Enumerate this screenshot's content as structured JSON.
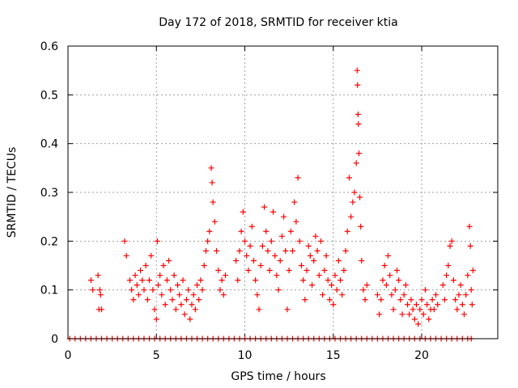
{
  "chart_data": {
    "type": "scatter",
    "title": "Day 172 of 2018, SRMTID for receiver ktia",
    "xlabel": "GPS time / hours",
    "ylabel": "SRMTID / TECUs",
    "xlim": [
      0,
      24.3
    ],
    "ylim": [
      0,
      0.6
    ],
    "xticks": [
      0,
      5,
      10,
      15,
      20
    ],
    "xtick_labels": [
      "0",
      "5",
      "10",
      "15",
      "20"
    ],
    "yticks": [
      0,
      0.1,
      0.2,
      0.3,
      0.4,
      0.5,
      0.6
    ],
    "ytick_labels": [
      "0",
      "0.1",
      "0.2",
      "0.3",
      "0.4",
      "0.5",
      "0.6"
    ],
    "grid": true,
    "marker": "+",
    "series": [
      {
        "name": "SRMTID",
        "color": "#ff0000",
        "points": [
          [
            1.3,
            0.12
          ],
          [
            1.4,
            0.1
          ],
          [
            1.7,
            0.13
          ],
          [
            1.75,
            0.06
          ],
          [
            1.8,
            0.1
          ],
          [
            1.85,
            0.09
          ],
          [
            1.9,
            0.06
          ],
          [
            3.2,
            0.2
          ],
          [
            3.3,
            0.17
          ],
          [
            3.5,
            0.12
          ],
          [
            3.6,
            0.1
          ],
          [
            3.7,
            0.08
          ],
          [
            3.8,
            0.13
          ],
          [
            3.9,
            0.11
          ],
          [
            4.0,
            0.09
          ],
          [
            4.1,
            0.14
          ],
          [
            4.2,
            0.12
          ],
          [
            4.3,
            0.1
          ],
          [
            4.4,
            0.15
          ],
          [
            4.5,
            0.08
          ],
          [
            4.6,
            0.12
          ],
          [
            4.7,
            0.17
          ],
          [
            4.8,
            0.1
          ],
          [
            4.9,
            0.06
          ],
          [
            5.0,
            0.04
          ],
          [
            5.05,
            0.2
          ],
          [
            5.1,
            0.11
          ],
          [
            5.2,
            0.13
          ],
          [
            5.3,
            0.09
          ],
          [
            5.4,
            0.15
          ],
          [
            5.5,
            0.07
          ],
          [
            5.6,
            0.12
          ],
          [
            5.7,
            0.16
          ],
          [
            5.8,
            0.1
          ],
          [
            5.9,
            0.08
          ],
          [
            6.0,
            0.13
          ],
          [
            6.1,
            0.06
          ],
          [
            6.2,
            0.11
          ],
          [
            6.3,
            0.09
          ],
          [
            6.4,
            0.07
          ],
          [
            6.5,
            0.12
          ],
          [
            6.6,
            0.05
          ],
          [
            6.7,
            0.08
          ],
          [
            6.8,
            0.1
          ],
          [
            6.9,
            0.04
          ],
          [
            7.0,
            0.07
          ],
          [
            7.1,
            0.09
          ],
          [
            7.2,
            0.06
          ],
          [
            7.3,
            0.11
          ],
          [
            7.4,
            0.08
          ],
          [
            7.5,
            0.12
          ],
          [
            7.6,
            0.1
          ],
          [
            7.7,
            0.15
          ],
          [
            7.8,
            0.18
          ],
          [
            7.9,
            0.2
          ],
          [
            8.0,
            0.22
          ],
          [
            8.1,
            0.35
          ],
          [
            8.15,
            0.32
          ],
          [
            8.2,
            0.28
          ],
          [
            8.3,
            0.24
          ],
          [
            8.4,
            0.18
          ],
          [
            8.5,
            0.14
          ],
          [
            8.6,
            0.1
          ],
          [
            8.7,
            0.12
          ],
          [
            8.8,
            0.09
          ],
          [
            8.9,
            0.13
          ],
          [
            9.5,
            0.16
          ],
          [
            9.6,
            0.12
          ],
          [
            9.7,
            0.18
          ],
          [
            9.8,
            0.22
          ],
          [
            9.9,
            0.26
          ],
          [
            10.0,
            0.2
          ],
          [
            10.1,
            0.17
          ],
          [
            10.2,
            0.14
          ],
          [
            10.3,
            0.19
          ],
          [
            10.4,
            0.23
          ],
          [
            10.5,
            0.16
          ],
          [
            10.6,
            0.12
          ],
          [
            10.7,
            0.09
          ],
          [
            10.8,
            0.06
          ],
          [
            10.9,
            0.15
          ],
          [
            11.0,
            0.19
          ],
          [
            11.1,
            0.27
          ],
          [
            11.2,
            0.22
          ],
          [
            11.3,
            0.18
          ],
          [
            11.4,
            0.14
          ],
          [
            11.5,
            0.2
          ],
          [
            11.6,
            0.26
          ],
          [
            11.7,
            0.17
          ],
          [
            11.8,
            0.13
          ],
          [
            11.9,
            0.1
          ],
          [
            12.0,
            0.16
          ],
          [
            12.1,
            0.21
          ],
          [
            12.2,
            0.25
          ],
          [
            12.3,
            0.18
          ],
          [
            12.4,
            0.06
          ],
          [
            12.5,
            0.14
          ],
          [
            12.6,
            0.22
          ],
          [
            12.7,
            0.18
          ],
          [
            12.8,
            0.28
          ],
          [
            12.9,
            0.24
          ],
          [
            13.0,
            0.33
          ],
          [
            13.1,
            0.2
          ],
          [
            13.2,
            0.15
          ],
          [
            13.3,
            0.12
          ],
          [
            13.4,
            0.08
          ],
          [
            13.5,
            0.14
          ],
          [
            13.6,
            0.19
          ],
          [
            13.7,
            0.17
          ],
          [
            13.8,
            0.11
          ],
          [
            13.9,
            0.16
          ],
          [
            14.0,
            0.21
          ],
          [
            14.1,
            0.18
          ],
          [
            14.2,
            0.13
          ],
          [
            14.3,
            0.2
          ],
          [
            14.4,
            0.09
          ],
          [
            14.5,
            0.14
          ],
          [
            14.6,
            0.17
          ],
          [
            14.7,
            0.12
          ],
          [
            14.8,
            0.08
          ],
          [
            14.9,
            0.11
          ],
          [
            15.0,
            0.07
          ],
          [
            15.1,
            0.13
          ],
          [
            15.2,
            0.1
          ],
          [
            15.3,
            0.16
          ],
          [
            15.4,
            0.12
          ],
          [
            15.5,
            0.09
          ],
          [
            15.6,
            0.14
          ],
          [
            15.7,
            0.18
          ],
          [
            15.8,
            0.22
          ],
          [
            15.9,
            0.33
          ],
          [
            16.0,
            0.25
          ],
          [
            16.1,
            0.28
          ],
          [
            16.2,
            0.3
          ],
          [
            16.3,
            0.36
          ],
          [
            16.35,
            0.55
          ],
          [
            16.37,
            0.52
          ],
          [
            16.4,
            0.46
          ],
          [
            16.42,
            0.44
          ],
          [
            16.45,
            0.38
          ],
          [
            16.5,
            0.29
          ],
          [
            16.55,
            0.23
          ],
          [
            16.6,
            0.16
          ],
          [
            16.7,
            0.1
          ],
          [
            16.8,
            0.08
          ],
          [
            16.9,
            0.11
          ],
          [
            17.5,
            0.09
          ],
          [
            17.6,
            0.05
          ],
          [
            17.7,
            0.08
          ],
          [
            17.8,
            0.12
          ],
          [
            17.9,
            0.15
          ],
          [
            18.0,
            0.11
          ],
          [
            18.1,
            0.17
          ],
          [
            18.2,
            0.13
          ],
          [
            18.3,
            0.09
          ],
          [
            18.4,
            0.06
          ],
          [
            18.5,
            0.1
          ],
          [
            18.6,
            0.14
          ],
          [
            18.7,
            0.12
          ],
          [
            18.8,
            0.08
          ],
          [
            18.9,
            0.05
          ],
          [
            19.0,
            0.09
          ],
          [
            19.1,
            0.11
          ],
          [
            19.2,
            0.07
          ],
          [
            19.3,
            0.05
          ],
          [
            19.4,
            0.08
          ],
          [
            19.5,
            0.06
          ],
          [
            19.6,
            0.04
          ],
          [
            19.7,
            0.07
          ],
          [
            19.8,
            0.03
          ],
          [
            19.9,
            0.06
          ],
          [
            20.0,
            0.08
          ],
          [
            20.1,
            0.05
          ],
          [
            20.2,
            0.1
          ],
          [
            20.3,
            0.07
          ],
          [
            20.4,
            0.04
          ],
          [
            20.5,
            0.06
          ],
          [
            20.6,
            0.08
          ],
          [
            20.7,
            0.06
          ],
          [
            20.8,
            0.09
          ],
          [
            20.9,
            0.07
          ],
          [
            21.2,
            0.11
          ],
          [
            21.3,
            0.08
          ],
          [
            21.4,
            0.13
          ],
          [
            21.5,
            0.15
          ],
          [
            21.6,
            0.19
          ],
          [
            21.7,
            0.2
          ],
          [
            21.8,
            0.12
          ],
          [
            21.9,
            0.08
          ],
          [
            22.0,
            0.06
          ],
          [
            22.1,
            0.09
          ],
          [
            22.2,
            0.11
          ],
          [
            22.3,
            0.07
          ],
          [
            22.4,
            0.05
          ],
          [
            22.5,
            0.09
          ],
          [
            22.6,
            0.13
          ],
          [
            22.7,
            0.23
          ],
          [
            22.75,
            0.19
          ],
          [
            22.8,
            0.1
          ],
          [
            22.85,
            0.07
          ],
          [
            22.9,
            0.14
          ]
        ],
        "zero_x": [
          0.1,
          0.4,
          0.7,
          1.0,
          1.3,
          1.6,
          1.9,
          2.2,
          2.5,
          2.8,
          3.1,
          3.4,
          3.7,
          4.0,
          4.3,
          4.6,
          4.9,
          5.2,
          5.5,
          5.8,
          6.1,
          6.4,
          6.7,
          7.0,
          7.3,
          7.6,
          7.9,
          8.2,
          8.5,
          8.8,
          9.1,
          9.4,
          9.7,
          10.0,
          10.3,
          10.6,
          10.9,
          11.2,
          11.5,
          11.8,
          12.1,
          12.4,
          12.7,
          13.0,
          13.3,
          13.6,
          13.9,
          14.2,
          14.5,
          14.8,
          15.1,
          15.4,
          15.7,
          16.0,
          16.3,
          16.6,
          16.9,
          17.2,
          17.5,
          17.8,
          18.1,
          18.4,
          18.7,
          19.0,
          19.3,
          19.6,
          19.9,
          20.2,
          20.5,
          20.8,
          21.1,
          21.4,
          21.7,
          22.0,
          22.3,
          22.6,
          22.8
        ]
      }
    ]
  }
}
